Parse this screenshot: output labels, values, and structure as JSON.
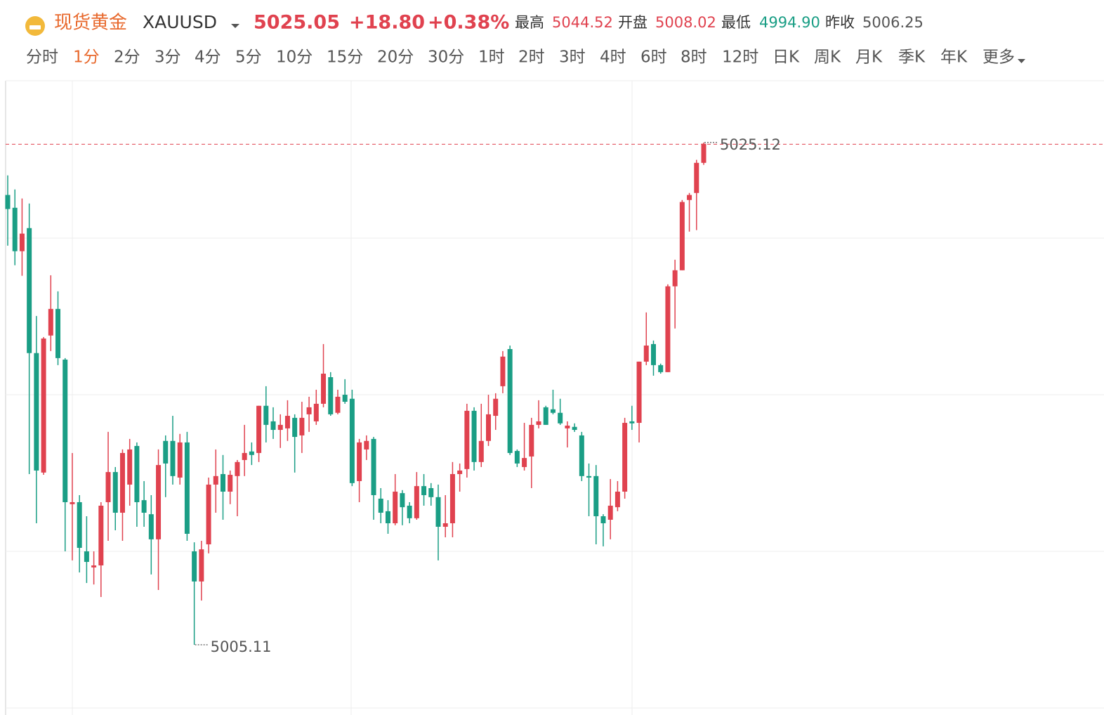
{
  "header": {
    "name": "现货黄金",
    "symbol": "XAUUSD",
    "price": 5025.05,
    "change": "+18.80",
    "change_pct": "+0.38%",
    "stats": [
      {
        "label": "最高",
        "value": "5044.52",
        "color": "#e0424f"
      },
      {
        "label": "开盘",
        "value": "5008.02",
        "color": "#e0424f"
      },
      {
        "label": "最低",
        "value": "4994.90",
        "color": "#1a9e85"
      },
      {
        "label": "昨收",
        "value": "5006.25",
        "color": "#555555"
      }
    ]
  },
  "tabs": [
    "分时",
    "1分",
    "2分",
    "3分",
    "4分",
    "5分",
    "10分",
    "15分",
    "20分",
    "30分",
    "1时",
    "2时",
    "3时",
    "4时",
    "6时",
    "8时",
    "12时",
    "日K",
    "周K",
    "月K",
    "季K",
    "年K",
    "更多"
  ],
  "active_tab": 1,
  "chart_data": {
    "type": "candlestick",
    "up_color": "#e0424f",
    "down_color": "#1a9e85",
    "ylim": [
      5002.59,
      5027.58
    ],
    "open": [
      5023.03,
      5022.52,
      5020.79,
      5021.71,
      5016.73,
      5011.97,
      5017.43,
      5018.49,
      5016.47,
      5010.71,
      5010.79,
      5008.83,
      5008.19,
      5008.27,
      5010.79,
      5011.99,
      5010.37,
      5011.49,
      5013.03,
      5010.87,
      5010.31,
      5009.31,
      5013.23,
      5013.23,
      5011.77,
      5013.17,
      5008.83,
      5007.63,
      5009.11,
      5011.49,
      5011.91,
      5011.21,
      5011.83,
      5012.47,
      5012.81,
      5012.75,
      5014.63,
      5014.01,
      5013.67,
      5013.73,
      5014.15,
      5013.45,
      5014.29,
      5014.01,
      5014.71,
      5015.77,
      5014.35,
      5015.07,
      5014.91,
      5011.63,
      5012.89,
      5013.31,
      5010.93,
      5010.43,
      5009.95,
      5011.15,
      5010.65,
      5010.15,
      5011.43,
      5011.35,
      5010.99,
      5009.81,
      5009.95,
      5011.91,
      5012.11,
      5014.43,
      5012.39,
      5013.23,
      5014.23,
      5015.41,
      5016.89,
      5012.83,
      5012.19,
      5012.61,
      5013.87,
      5014.57,
      5014.49,
      5014.35,
      5013.73,
      5013.79,
      5013.45,
      5011.83,
      5011.83,
      5010.23,
      5010.09,
      5010.59,
      5011.21,
      5014.01,
      5013.95,
      5016.39,
      5017.09,
      5016.25,
      5015.97,
      5019.39,
      5020.03,
      5022.83,
      5023.11,
      5024.31
    ],
    "high": [
      5023.81,
      5023.25,
      5022.89,
      5022.69,
      5018.21,
      5017.37,
      5019.83,
      5019.19,
      5016.53,
      5012.75,
      5011.07,
      5010.23,
      5008.83,
      5010.79,
      5013.59,
      5012.19,
      5012.89,
      5013.31,
      5013.17,
      5011.63,
      5011.07,
      5012.89,
      5013.45,
      5014.23,
      5013.51,
      5013.59,
      5009.19,
      5009.25,
      5011.77,
      5012.89,
      5012.67,
      5012.05,
      5012.47,
      5013.87,
      5013.17,
      5014.63,
      5015.41,
      5014.57,
      5014.29,
      5014.85,
      5014.29,
      5014.79,
      5014.99,
      5015.27,
      5017.09,
      5015.97,
      5015.27,
      5015.69,
      5015.27,
      5013.31,
      5013.45,
      5013.39,
      5011.35,
      5010.87,
      5011.91,
      5011.27,
      5010.79,
      5011.99,
      5011.91,
      5011.55,
      5011.49,
      5011.07,
      5012.39,
      5012.33,
      5014.71,
      5014.57,
      5014.71,
      5015.07,
      5015.13,
      5016.81,
      5017.03,
      5012.89,
      5013.95,
      5014.15,
      5014.85,
      5014.63,
      5015.27,
      5014.91,
      5014.01,
      5013.93,
      5013.59,
      5012.33,
      5012.27,
      5010.31,
      5011.71,
      5011.63,
      5014.15,
      5014.63,
      5016.39,
      5018.35,
      5017.23,
      5016.31,
      5019.47,
      5020.45,
      5022.83,
      5023.11,
      5024.43,
      5025.12
    ],
    "low": [
      5021.01,
      5020.23,
      5019.81,
      5011.91,
      5009.95,
      5011.88,
      5016.81,
      5016.25,
      5008.83,
      5008.47,
      5007.99,
      5007.57,
      5007.51,
      5007.01,
      5009.25,
      5009.67,
      5009.25,
      5010.65,
      5009.81,
      5009.81,
      5007.91,
      5007.29,
      5010.99,
      5011.49,
      5011.49,
      5009.25,
      5005.11,
      5006.87,
      5008.75,
      5010.37,
      5010.09,
      5010.71,
      5010.23,
      5011.83,
      5012.27,
      5012.39,
      5013.17,
      5013.31,
      5012.95,
      5013.23,
      5011.97,
      5012.75,
      5013.59,
      5013.87,
      5014.57,
      5014.23,
      5014.29,
      5014.71,
      5011.43,
      5010.79,
      5012.47,
      5010.09,
      5009.95,
      5009.53,
      5009.87,
      5009.87,
      5009.95,
      5010.09,
      5010.65,
      5010.65,
      5008.47,
      5009.39,
      5009.39,
      5011.21,
      5011.77,
      5012.05,
      5012.19,
      5013.03,
      5013.67,
      5015.13,
      5012.67,
      5012.19,
      5012.05,
      5011.35,
      5013.73,
      5013.87,
      5014.29,
      5013.87,
      5012.97,
      5013.59,
      5011.63,
      5010.23,
      5009.11,
      5009.03,
      5009.31,
      5010.43,
      5010.93,
      5013.67,
      5013.17,
      5016.25,
      5015.83,
      5015.91,
      5015.97,
      5017.71,
      5020.03,
      5021.57,
      5021.63,
      5024.23
    ],
    "close": [
      5022.47,
      5020.79,
      5021.49,
      5016.73,
      5012.05,
      5017.31,
      5018.49,
      5016.53,
      5010.79,
      5010.79,
      5008.97,
      5008.41,
      5008.27,
      5010.65,
      5011.99,
      5010.37,
      5012.75,
      5012.89,
      5010.79,
      5010.37,
      5009.31,
      5012.27,
      5012.33,
      5011.83,
      5013.17,
      5009.53,
      5007.63,
      5008.91,
      5011.49,
      5011.83,
      5011.21,
      5011.88,
      5012.39,
      5012.75,
      5012.67,
      5014.63,
      5013.87,
      5013.67,
      5013.87,
      5014.23,
      5013.39,
      5014.15,
      5014.57,
      5014.71,
      5015.91,
      5014.29,
      5014.99,
      5014.79,
      5011.55,
      5013.17,
      5013.23,
      5011.07,
      5010.37,
      5009.95,
      5011.21,
      5010.59,
      5010.15,
      5011.43,
      5011.07,
      5010.99,
      5009.81,
      5009.95,
      5011.91,
      5012.05,
      5014.43,
      5012.39,
      5013.23,
      5014.29,
      5014.91,
      5016.59,
      5012.75,
      5012.33,
      5012.55,
      5013.87,
      5014.01,
      5013.87,
      5014.35,
      5013.93,
      5013.84,
      5013.67,
      5011.83,
      5011.77,
      5010.23,
      5009.95,
      5010.65,
      5011.21,
      5013.95,
      5013.93,
      5016.39,
      5017.03,
      5016.25,
      5015.97,
      5019.39,
      5020.03,
      5022.75,
      5023.03,
      5024.31,
      5025.07
    ]
  }
}
